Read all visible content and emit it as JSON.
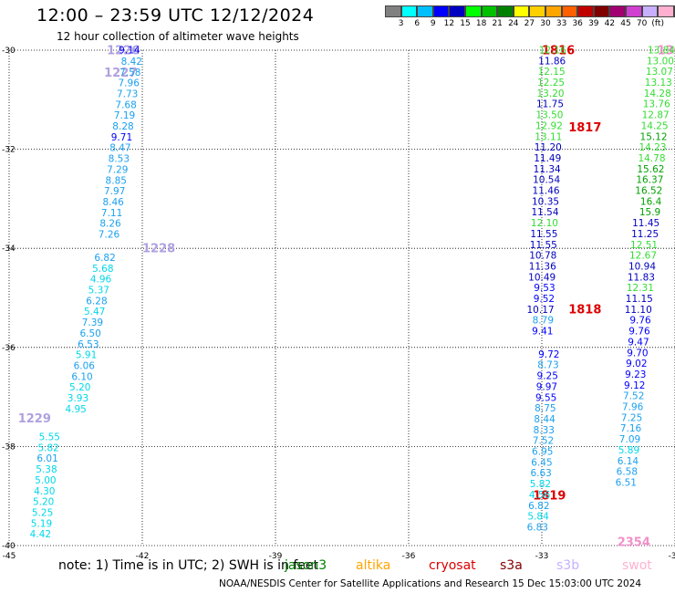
{
  "header": {
    "title": "12:00 – 23:59 UTC 12/12/2024",
    "subtitle": "12 hour collection of altimeter wave heights"
  },
  "colorbar": {
    "colors": [
      "#808080",
      "#00ffff",
      "#00bfff",
      "#0000ff",
      "#0000c0",
      "#00ff00",
      "#00c000",
      "#008000",
      "#ffff00",
      "#ffd000",
      "#ffa500",
      "#ff6000",
      "#c00000",
      "#800000",
      "#a00070",
      "#d040d0",
      "#c8b0ff",
      "#ffb0d0",
      "#000000"
    ],
    "labels": [
      "3",
      "6",
      "9",
      "12",
      "15",
      "18",
      "21",
      "24",
      "27",
      "30",
      "33",
      "36",
      "39",
      "42",
      "45",
      "70",
      "(ft)"
    ]
  },
  "map": {
    "lon_range": [
      -45,
      -30
    ],
    "lat_range": [
      -40,
      -30
    ],
    "x_ticks": [
      "-45",
      "-42",
      "-39",
      "-36",
      "-33",
      "-30"
    ],
    "y_ticks": [
      "-30",
      "-32",
      "-34",
      "-36",
      "-38",
      "-40"
    ],
    "passes": [
      {
        "id": "1226",
        "satellite": "saral",
        "label_color": "#b0a0e0",
        "lon": -42.8,
        "lat": -29.99,
        "values": [
          "9.14"
        ]
      },
      {
        "id": "1227",
        "satellite": "saral",
        "label_color": "#b0a0e0",
        "lon": -42.86,
        "lat": -30.44,
        "values": [
          "8.42",
          "7.58",
          "7.96",
          "7.73",
          "7.68",
          "7.19",
          "8.28",
          "9.71",
          "8.47",
          "8.53",
          "7.29",
          "8.85",
          "7.97",
          "8.46",
          "7.11",
          "8.26",
          "7.26"
        ]
      },
      {
        "id": "1228",
        "satellite": "saral",
        "label_color": "#b0a0e0",
        "lon": -42.0,
        "lat": -33.99,
        "values": [
          "6.82",
          "5.68",
          "4.96",
          "5.37",
          "6.28",
          "5.47",
          "7.39",
          "6.50",
          "6.53",
          "5.91",
          "6.06",
          "6.10",
          "5.20",
          "3.93",
          "4.95"
        ]
      },
      {
        "id": "1229",
        "satellite": "saral",
        "label_color": "#b0a0e0",
        "lon": -44.8,
        "lat": -37.42,
        "values": [
          "5.55",
          "5.82",
          "6.01",
          "5.38",
          "5.00",
          "4.30",
          "5.20",
          "5.25",
          "5.19",
          "4.42"
        ]
      },
      {
        "id": "1816",
        "satellite": "cryosat",
        "label_color": "#dd0000",
        "lon": -33.0,
        "lat": -29.99,
        "values": [
          "12.16",
          "11.86",
          "12.15",
          "12.25",
          "13.20",
          "11.75",
          "13.50",
          "12.92",
          "13.11",
          "11.20",
          "11.49",
          "11.34",
          "10.54",
          "11.46",
          "10.35",
          "11.54",
          "12.10",
          "11.55",
          "11.55",
          "10.78",
          "11.36",
          "10.49",
          "9.53",
          "9.52",
          "10.17",
          "8.79",
          "9.41"
        ]
      },
      {
        "id": "1817",
        "satellite": "cryosat",
        "label_color": "#dd0000",
        "lon": -32.4,
        "lat": -31.55,
        "values": []
      },
      {
        "id": "1818",
        "satellite": "cryosat",
        "label_color": "#dd0000",
        "lon": -32.4,
        "lat": -35.22,
        "values": []
      },
      {
        "id": "1819",
        "satellite": "cryosat",
        "label_color": "#dd0000",
        "lon": -33.2,
        "lat": -38.98,
        "values": [
          "9.72",
          "8.73",
          "9.25",
          "9.97",
          "9.55",
          "8.75",
          "8.44",
          "8.33",
          "7.52",
          "6.95",
          "6.45",
          "6.63",
          "5.82",
          "4.56",
          "6.82",
          "5.84",
          "6.83"
        ]
      },
      {
        "id": "1300",
        "satellite": "swot",
        "label_color": "#f090c8",
        "lon": -30.4,
        "lat": -29.99,
        "values": [
          "13.84",
          "13.00",
          "13.07",
          "13.13",
          "14.28",
          "13.76",
          "12.87",
          "14.25",
          "15.12",
          "14.23",
          "14.78",
          "15.62",
          "16.37",
          "16.52",
          "16.4",
          "15.9",
          "11.45",
          "11.25",
          "12.51",
          "12.67",
          "10.94",
          "11.83",
          "12.31",
          "11.15",
          "11.10",
          "9.76",
          "9.76",
          "9.47",
          "9.70",
          "9.02",
          "9.23",
          "9.12",
          "7.52",
          "7.96",
          "7.25",
          "7.16",
          "7.09",
          "5.89",
          "6.14",
          "6.58",
          "6.51"
        ]
      },
      {
        "id": "2354",
        "satellite": "swot",
        "label_color": "#f090c8",
        "lon": -31.3,
        "lat": -39.92,
        "values": []
      }
    ]
  },
  "footer": {
    "note": "note:  1) Time is in UTC; 2) SWH is in feet",
    "legend": [
      {
        "name": "jason3",
        "color": "#008000"
      },
      {
        "name": "altika",
        "color": "#ffa500"
      },
      {
        "name": "cryosat",
        "color": "#dd0000"
      },
      {
        "name": "s3a",
        "color": "#800000"
      },
      {
        "name": "s3b",
        "color": "#c8b0ff"
      },
      {
        "name": "swot",
        "color": "#ffb0d0"
      }
    ],
    "credit": "NOAA/NESDIS Center for Satellite Applications and Research   15 Dec 15:03:00 UTC 2024"
  }
}
